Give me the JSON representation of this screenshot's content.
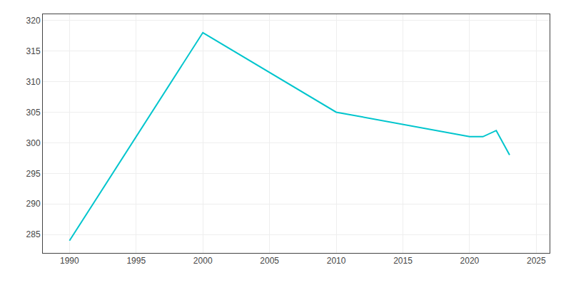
{
  "chart_data": {
    "type": "line",
    "x": [
      1990,
      2000,
      2010,
      2015,
      2020,
      2021,
      2022,
      2023
    ],
    "values": [
      284,
      318,
      305,
      303,
      301,
      301,
      302,
      298
    ],
    "color": "#00c5cd",
    "xlim": [
      1988,
      2026
    ],
    "ylim": [
      282,
      321
    ],
    "xticks": [
      1990,
      1995,
      2000,
      2005,
      2010,
      2015,
      2020,
      2025
    ],
    "yticks": [
      285,
      290,
      295,
      300,
      305,
      310,
      315,
      320
    ],
    "grid": true
  }
}
